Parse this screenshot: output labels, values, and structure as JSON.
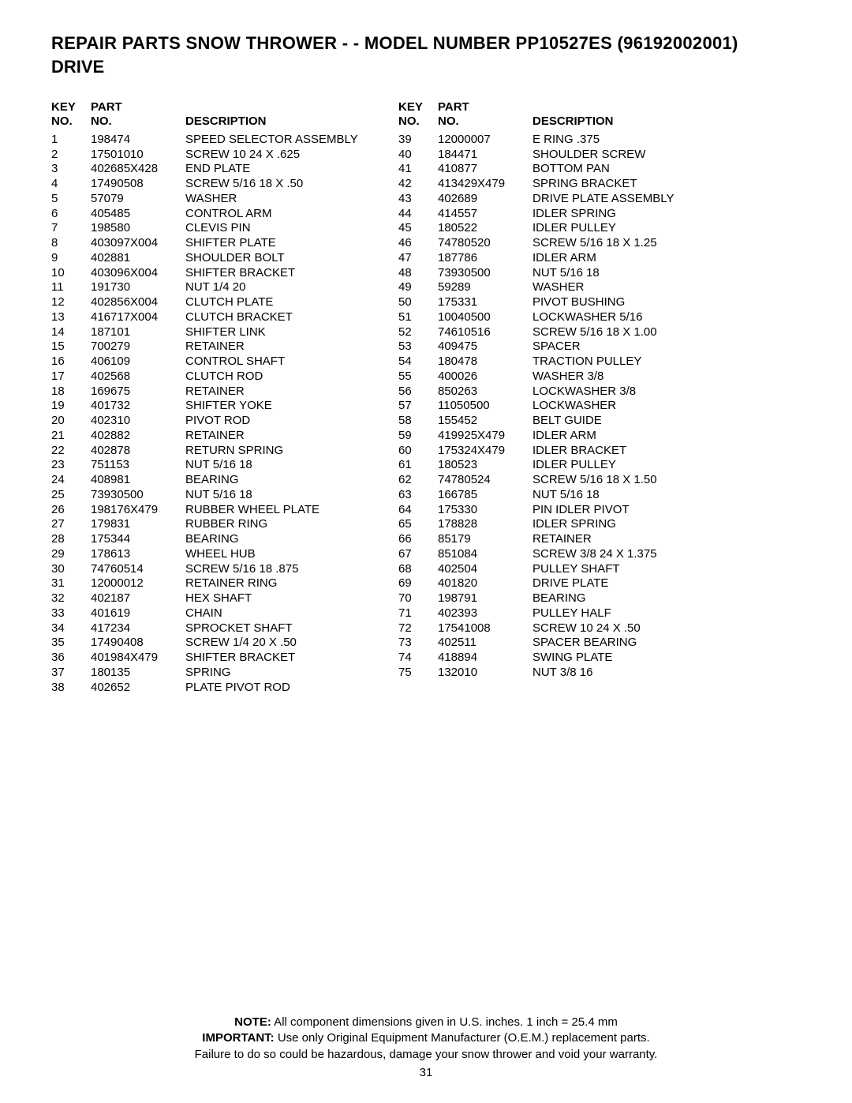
{
  "title_line1": "REPAIR PARTS SNOW THROWER - - MODEL NUMBER PP10527ES (96192002001)",
  "title_line2": "DRIVE",
  "headers": {
    "key_top": "KEY",
    "key_bottom": "NO.",
    "part_top": "PART",
    "part_bottom": "NO.",
    "desc": "DESCRIPTION"
  },
  "left_rows": [
    {
      "k": "1",
      "p": "198474",
      "d": "SPEED SELECTOR ASSEMBLY"
    },
    {
      "k": "2",
      "p": "17501010",
      "d": "SCREW 10  24 X .625"
    },
    {
      "k": "3",
      "p": "402685X428",
      "d": "END PLATE"
    },
    {
      "k": "4",
      "p": "17490508",
      "d": "SCREW 5/16  18 X .50"
    },
    {
      "k": "5",
      "p": "57079",
      "d": "WASHER"
    },
    {
      "k": "6",
      "p": "405485",
      "d": "CONTROL ARM"
    },
    {
      "k": "7",
      "p": "198580",
      "d": "CLEVIS PIN"
    },
    {
      "k": "8",
      "p": "403097X004",
      "d": "SHIFTER PLATE"
    },
    {
      "k": "9",
      "p": "402881",
      "d": "SHOULDER BOLT"
    },
    {
      "k": "10",
      "p": "403096X004",
      "d": "SHIFTER BRACKET"
    },
    {
      "k": "11",
      "p": "191730",
      "d": "NUT 1/4  20"
    },
    {
      "k": "12",
      "p": "402856X004",
      "d": "CLUTCH PLATE"
    },
    {
      "k": "13",
      "p": "416717X004",
      "d": "CLUTCH BRACKET"
    },
    {
      "k": "14",
      "p": "187101",
      "d": "SHIFTER LINK"
    },
    {
      "k": "15",
      "p": "700279",
      "d": "RETAINER"
    },
    {
      "k": "16",
      "p": "406109",
      "d": "CONTROL SHAFT"
    },
    {
      "k": "17",
      "p": "402568",
      "d": "CLUTCH ROD"
    },
    {
      "k": "18",
      "p": "169675",
      "d": "RETAINER"
    },
    {
      "k": "19",
      "p": "401732",
      "d": "SHIFTER YOKE"
    },
    {
      "k": "20",
      "p": "402310",
      "d": "PIVOT ROD"
    },
    {
      "k": "21",
      "p": "402882",
      "d": "RETAINER"
    },
    {
      "k": "22",
      "p": "402878",
      "d": "RETURN SPRING"
    },
    {
      "k": "23",
      "p": "751153",
      "d": "NUT 5/16  18"
    },
    {
      "k": "24",
      "p": "408981",
      "d": "BEARING"
    },
    {
      "k": "25",
      "p": "73930500",
      "d": "NUT 5/16  18"
    },
    {
      "k": "26",
      "p": "198176X479",
      "d": "RUBBER WHEEL PLATE"
    },
    {
      "k": "27",
      "p": "179831",
      "d": "RUBBER RING"
    },
    {
      "k": "28",
      "p": "175344",
      "d": "BEARING"
    },
    {
      "k": "29",
      "p": "178613",
      "d": "WHEEL HUB"
    },
    {
      "k": "30",
      "p": "74760514",
      "d": "SCREW 5/16  18  .875"
    },
    {
      "k": "31",
      "p": "12000012",
      "d": "RETAINER RING"
    },
    {
      "k": "32",
      "p": "402187",
      "d": "HEX SHAFT"
    },
    {
      "k": "33",
      "p": "401619",
      "d": "CHAIN"
    },
    {
      "k": "34",
      "p": "417234",
      "d": "SPROCKET SHAFT"
    },
    {
      "k": "35",
      "p": "17490408",
      "d": "SCREW 1/4  20 X .50"
    },
    {
      "k": "36",
      "p": "401984X479",
      "d": "SHIFTER BRACKET"
    },
    {
      "k": "37",
      "p": "180135",
      "d": "SPRING"
    },
    {
      "k": "38",
      "p": "402652",
      "d": "PLATE PIVOT ROD"
    }
  ],
  "right_rows": [
    {
      "k": "39",
      "p": "12000007",
      "d": "E  RING .375"
    },
    {
      "k": "40",
      "p": "184471",
      "d": "SHOULDER SCREW"
    },
    {
      "k": "41",
      "p": "410877",
      "d": "BOTTOM PAN"
    },
    {
      "k": "42",
      "p": "413429X479",
      "d": "SPRING BRACKET"
    },
    {
      "k": "43",
      "p": "402689",
      "d": "DRIVE PLATE ASSEMBLY"
    },
    {
      "k": "44",
      "p": "414557",
      "d": "IDLER SPRING"
    },
    {
      "k": "45",
      "p": "180522",
      "d": "IDLER PULLEY"
    },
    {
      "k": "46",
      "p": "74780520",
      "d": "SCREW 5/16  18 X 1.25"
    },
    {
      "k": "47",
      "p": "187786",
      "d": "IDLER ARM"
    },
    {
      "k": "48",
      "p": "73930500",
      "d": "NUT 5/16  18"
    },
    {
      "k": "49",
      "p": "59289",
      "d": "WASHER"
    },
    {
      "k": "50",
      "p": "175331",
      "d": "PIVOT BUSHING"
    },
    {
      "k": "51",
      "p": "10040500",
      "d": "LOCKWASHER 5/16"
    },
    {
      "k": "52",
      "p": "74610516",
      "d": "SCREW 5/16  18 X 1.00"
    },
    {
      "k": "53",
      "p": "409475",
      "d": "SPACER"
    },
    {
      "k": "54",
      "p": "180478",
      "d": "TRACTION PULLEY"
    },
    {
      "k": "55",
      "p": "400026",
      "d": "WASHER 3/8"
    },
    {
      "k": "56",
      "p": "850263",
      "d": "LOCKWASHER 3/8"
    },
    {
      "k": "57",
      "p": "11050500",
      "d": "LOCKWASHER"
    },
    {
      "k": "58",
      "p": "155452",
      "d": "BELT GUIDE"
    },
    {
      "k": "59",
      "p": "419925X479",
      "d": "IDLER ARM"
    },
    {
      "k": "60",
      "p": "175324X479",
      "d": "IDLER BRACKET"
    },
    {
      "k": "61",
      "p": "180523",
      "d": "IDLER PULLEY"
    },
    {
      "k": "62",
      "p": "74780524",
      "d": "SCREW 5/16  18 X 1.50"
    },
    {
      "k": "63",
      "p": "166785",
      "d": "NUT 5/16  18"
    },
    {
      "k": "64",
      "p": "175330",
      "d": "PIN IDLER PIVOT"
    },
    {
      "k": "65",
      "p": "178828",
      "d": "IDLER SPRING"
    },
    {
      "k": "66",
      "p": "85179",
      "d": "RETAINER"
    },
    {
      "k": "67",
      "p": "851084",
      "d": "SCREW 3/8  24 X 1.375"
    },
    {
      "k": "68",
      "p": "402504",
      "d": "PULLEY SHAFT"
    },
    {
      "k": "69",
      "p": "401820",
      "d": "DRIVE PLATE"
    },
    {
      "k": "70",
      "p": "198791",
      "d": "BEARING"
    },
    {
      "k": "71",
      "p": "402393",
      "d": "PULLEY HALF"
    },
    {
      "k": "72",
      "p": "17541008",
      "d": "SCREW 10  24 X .50"
    },
    {
      "k": "73",
      "p": "402511",
      "d": "SPACER BEARING"
    },
    {
      "k": "74",
      "p": "418894",
      "d": "SWING PLATE"
    },
    {
      "k": "75",
      "p": "132010",
      "d": "NUT 3/8  16"
    }
  ],
  "footer": {
    "note_label": "NOTE:",
    "note_text": "  All component dimensions given in U.S. inches.    1 inch = 25.4 mm",
    "imp_label": "IMPORTANT:",
    "imp_text": " Use only Original Equipment Manufacturer (O.E.M.) replacement parts.",
    "warn_text": "Failure to do so could be hazardous, damage your snow thrower and void your warranty.",
    "page": "31"
  }
}
